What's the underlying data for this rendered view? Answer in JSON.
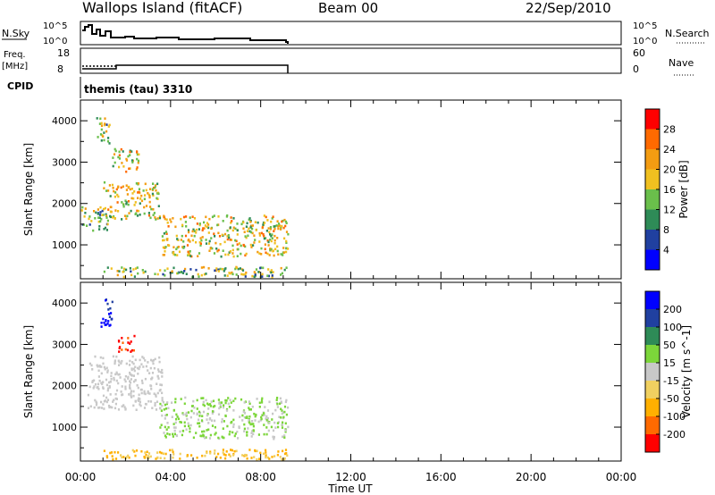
{
  "header": {
    "station": "Wallops Island (fitACF)",
    "beam": "Beam 00",
    "date": "22/Sep/2010"
  },
  "nsky_panel": {
    "left_label": "N.Sky",
    "right_label": "N.Search",
    "left_ticks": [
      "10^5",
      "10^0"
    ],
    "right_ticks": [
      "10^5",
      "10^0"
    ]
  },
  "freq_panel": {
    "left_label_top": "Freq.",
    "left_label_bottom": "[MHz]",
    "right_label": "Nave",
    "left_ticks": [
      "18",
      "8"
    ],
    "right_ticks": [
      "60",
      "0"
    ]
  },
  "cpid": {
    "label": "CPID",
    "value": "themis (tau) 3310"
  },
  "colors": {
    "power_scale": [
      "#0000ff",
      "#2040a0",
      "#2e8b57",
      "#6abf4b",
      "#f0c020",
      "#f39c12",
      "#ff6a00",
      "#ff0000"
    ],
    "velocity_scale": [
      "#ff0000",
      "#ff6a00",
      "#ffb000",
      "#f0d060",
      "#c8c8c8",
      "#7cd63a",
      "#2e8b57",
      "#2040a0",
      "#0000ff"
    ],
    "ground_scatter": "#c8c8c8"
  },
  "chart_data": [
    {
      "type": "heatmap",
      "title": "",
      "xlabel": "Time UT",
      "ylabel": "Slant Range [km]",
      "colorbar_label": "Power [dB]",
      "colorbar_ticks": [
        "4",
        "8",
        "12",
        "16",
        "20",
        "24",
        "28"
      ],
      "xlim": [
        "00:00",
        "24:00"
      ],
      "ylim": [
        180,
        4500
      ],
      "x_ticks": [
        "00:00",
        "04:00",
        "08:00",
        "12:00",
        "16:00",
        "20:00",
        "00:00"
      ],
      "y_ticks": [
        "1000",
        "2000",
        "3000",
        "4000"
      ],
      "data_end_hour": 9.2,
      "regions": [
        {
          "t0": 0.7,
          "t1": 1.3,
          "r0": 3400,
          "r1": 4100,
          "level": 3
        },
        {
          "t0": 1.4,
          "t1": 2.6,
          "r0": 2750,
          "r1": 3300,
          "level": 4
        },
        {
          "t0": 1.0,
          "t1": 3.5,
          "r0": 1600,
          "r1": 2500,
          "level": 4
        },
        {
          "t0": 0.0,
          "t1": 1.2,
          "r0": 1300,
          "r1": 1900,
          "level": 3
        },
        {
          "t0": 3.6,
          "t1": 9.2,
          "r0": 700,
          "r1": 1700,
          "level": 4
        },
        {
          "t0": 1.0,
          "t1": 9.2,
          "r0": 200,
          "r1": 450,
          "level": 3
        }
      ]
    },
    {
      "type": "heatmap",
      "title": "",
      "xlabel": "Time UT",
      "ylabel": "Slant Range [km]",
      "colorbar_label": "Velocity [m s^-1]",
      "colorbar_ticks": [
        "-200",
        "-100",
        "-50",
        "-15",
        "15",
        "50",
        "100",
        "200"
      ],
      "xlim": [
        "00:00",
        "24:00"
      ],
      "ylim": [
        180,
        4500
      ],
      "x_ticks": [
        "00:00",
        "04:00",
        "08:00",
        "12:00",
        "16:00",
        "20:00",
        "00:00"
      ],
      "y_ticks": [
        "1000",
        "2000",
        "3000",
        "4000"
      ],
      "data_end_hour": 9.2,
      "regions": [
        {
          "t0": 0.8,
          "t1": 1.4,
          "r0": 3400,
          "r1": 4100,
          "v": 200
        },
        {
          "t0": 1.6,
          "t1": 2.4,
          "r0": 2800,
          "r1": 3200,
          "v": -200
        },
        {
          "t0": 0.3,
          "t1": 3.6,
          "r0": 1400,
          "r1": 2700,
          "v": 0
        },
        {
          "t0": 3.5,
          "t1": 9.2,
          "r0": 700,
          "r1": 1700,
          "v": 30
        },
        {
          "t0": 1.0,
          "t1": 9.2,
          "r0": 200,
          "r1": 450,
          "v": -40
        }
      ]
    }
  ]
}
